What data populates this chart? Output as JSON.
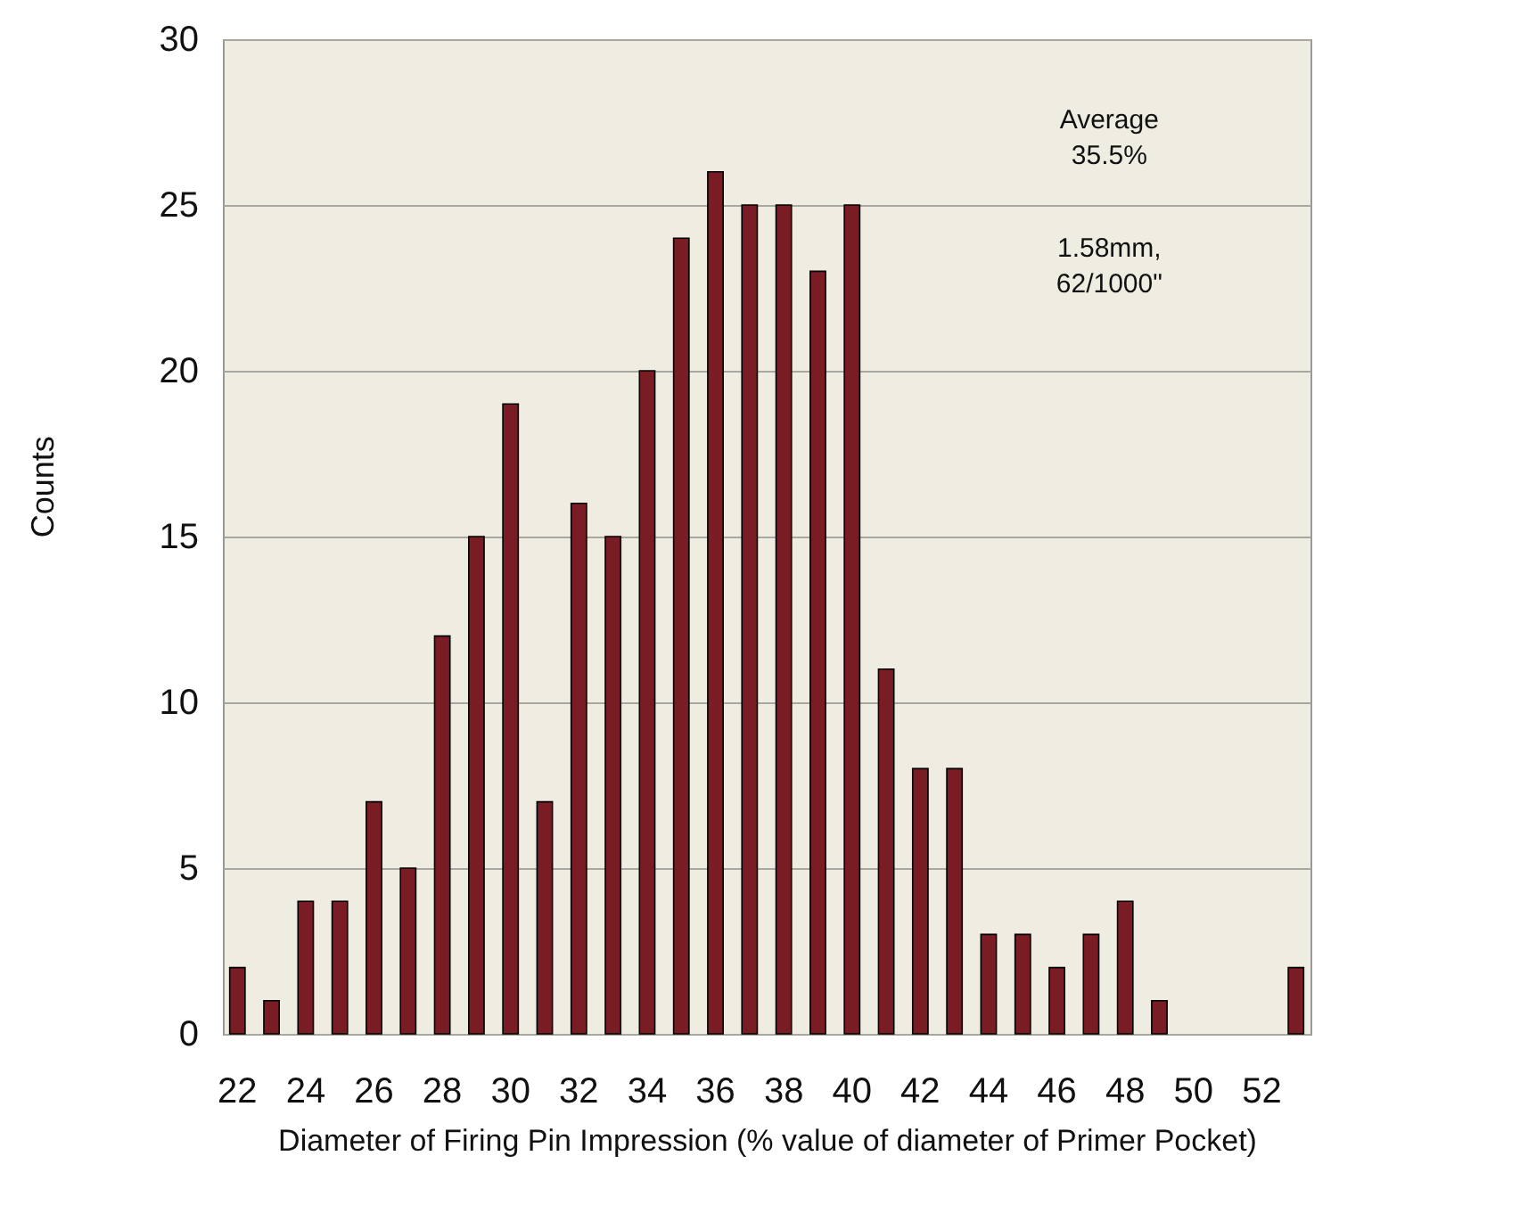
{
  "chart_data": {
    "type": "bar",
    "xlabel": "Diameter of Firing Pin Impression  (% value of diameter of Primer Pocket)",
    "ylabel": "Counts",
    "categories": [
      "22",
      null,
      "24",
      null,
      "26",
      null,
      "28",
      null,
      "30",
      null,
      "32",
      null,
      "34",
      null,
      "36",
      null,
      "38",
      null,
      "40",
      null,
      "42",
      null,
      "44",
      null,
      "46",
      null,
      "48",
      null,
      "50",
      null,
      "52",
      null
    ],
    "values": [
      2,
      1,
      4,
      4,
      7,
      5,
      12,
      15,
      19,
      7,
      16,
      15,
      20,
      24,
      26,
      25,
      25,
      23,
      25,
      11,
      8,
      8,
      3,
      3,
      2,
      3,
      4,
      1,
      0,
      0,
      0,
      2
    ],
    "color": "#7a1c24",
    "ylim": [
      0,
      30
    ],
    "yticks": [
      0,
      5,
      10,
      15,
      20,
      25,
      30
    ],
    "grid": "y",
    "annotations": [
      "Average 35.5%",
      "1.58mm, 62/1000\""
    ]
  }
}
